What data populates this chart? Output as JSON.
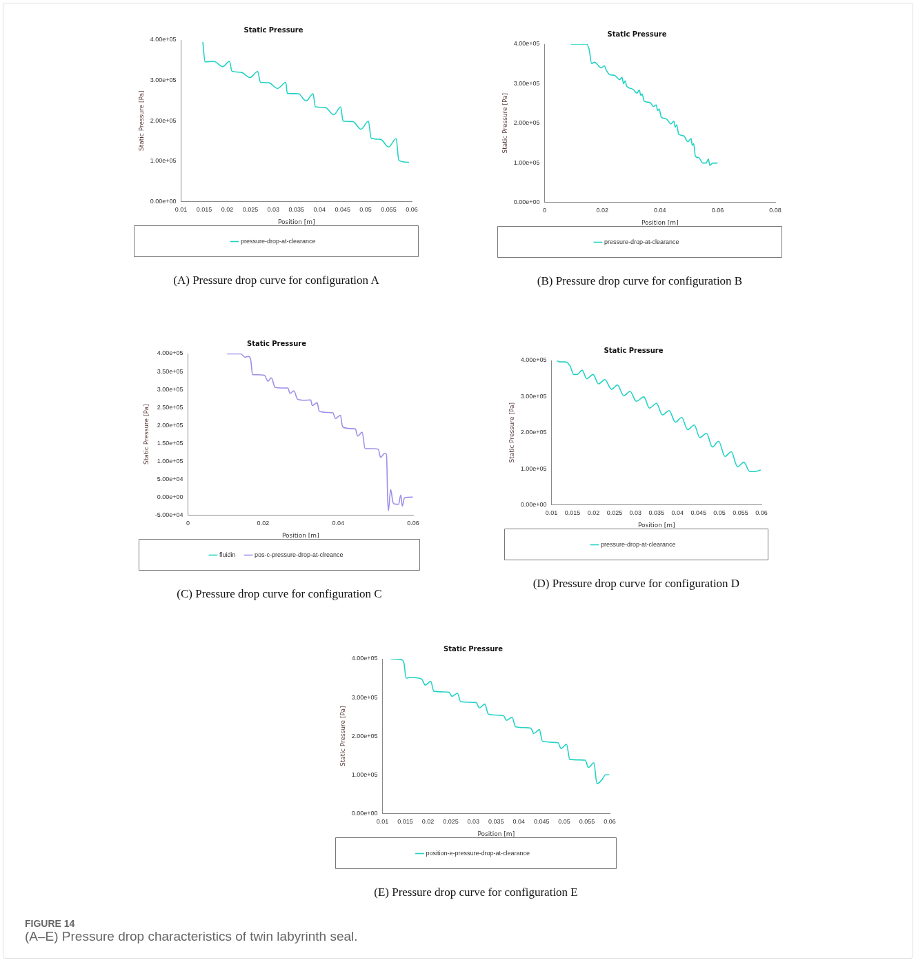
{
  "chart_data": [
    {
      "type": "line",
      "title": "Static Pressure",
      "xlabel": "Position [m]",
      "ylabel": "Static Pressure [Pa]",
      "legend": "bottom",
      "marker": "none",
      "line_style": "solid",
      "grid": false,
      "xlim": [
        0.01,
        0.06
      ],
      "xticks": [
        0.01,
        0.015,
        0.02,
        0.025,
        0.03,
        0.035,
        0.04,
        0.045,
        0.05,
        0.055,
        0.06
      ],
      "ylim": [
        0,
        400000
      ],
      "yticks": [
        {
          "value": 0,
          "label": "0.00e+00"
        },
        {
          "value": 100000,
          "label": "1.00e+05"
        },
        {
          "value": 200000,
          "label": "2.00e+05"
        },
        {
          "value": 300000,
          "label": "3.00e+05"
        },
        {
          "value": 400000,
          "label": "4.00e+05"
        }
      ],
      "series": [
        {
          "name": "pressure-drop-at-clearance",
          "color": "#22d3c5",
          "x": [
            0.0147,
            0.0152,
            0.0171,
            0.019,
            0.0205,
            0.021,
            0.023,
            0.0249,
            0.0266,
            0.0272,
            0.029,
            0.0309,
            0.0327,
            0.033,
            0.0354,
            0.0371,
            0.0386,
            0.0391,
            0.0412,
            0.0431,
            0.0446,
            0.0451,
            0.0472,
            0.049,
            0.0506,
            0.0512,
            0.0532,
            0.055,
            0.0566,
            0.0572,
            0.0594
          ],
          "values": [
            395000,
            346000,
            347000,
            334000,
            347000,
            323000,
            320000,
            307000,
            322000,
            295000,
            294000,
            280000,
            295000,
            268000,
            267000,
            249000,
            267000,
            235000,
            233000,
            215000,
            234000,
            199000,
            198000,
            179000,
            199000,
            157000,
            154000,
            135000,
            156000,
            102000,
            97000
          ]
        }
      ],
      "annotations": [
        "(A) Pressure drop curve for configuration A"
      ]
    },
    {
      "type": "line",
      "title": "Static Pressure",
      "xlabel": "Position [m]",
      "ylabel": "Static Pressure [Pa]",
      "legend": "bottom",
      "marker": "none",
      "line_style": "solid",
      "grid": false,
      "xlim": [
        0,
        0.08
      ],
      "xticks": [
        0,
        0.02,
        0.04,
        0.06,
        0.08
      ],
      "ylim": [
        0,
        400000
      ],
      "yticks": [
        {
          "value": 0,
          "label": "0.00e+00"
        },
        {
          "value": 100000,
          "label": "1.00e+05"
        },
        {
          "value": 200000,
          "label": "2.00e+05"
        },
        {
          "value": 300000,
          "label": "3.00e+05"
        },
        {
          "value": 400000,
          "label": "4.00e+05"
        }
      ],
      "series": [
        {
          "name": "pressure-drop-at-clearance",
          "color": "#22d3c5",
          "x": [
            0.0091,
            0.0145,
            0.0154,
            0.0163,
            0.0173,
            0.0197,
            0.0207,
            0.0214,
            0.0225,
            0.0242,
            0.0261,
            0.0268,
            0.0274,
            0.0279,
            0.0285,
            0.0306,
            0.0321,
            0.0328,
            0.0334,
            0.0338,
            0.0345,
            0.0366,
            0.0377,
            0.0387,
            0.0392,
            0.0397,
            0.0405,
            0.0422,
            0.0438,
            0.0448,
            0.0453,
            0.0458,
            0.0465,
            0.0482,
            0.0497,
            0.0508,
            0.0512,
            0.0517,
            0.0523,
            0.0534,
            0.0549,
            0.056,
            0.0568,
            0.0573,
            0.0583,
            0.06
          ],
          "values": [
            400000,
            400000,
            388000,
            351000,
            354000,
            340000,
            345000,
            334000,
            323000,
            321000,
            310000,
            316000,
            300000,
            307000,
            293000,
            286000,
            276000,
            284000,
            270000,
            274000,
            256000,
            252000,
            242000,
            246000,
            232000,
            236000,
            215000,
            211000,
            198000,
            205000,
            190000,
            196000,
            172000,
            168000,
            153000,
            161000,
            144000,
            148000,
            116000,
            113000,
            99000,
            99000,
            109000,
            93000,
            99000,
            99000
          ]
        }
      ],
      "annotations": [
        "(B) Pressure drop curve for configuration B"
      ]
    },
    {
      "type": "line",
      "title": "Static Pressure",
      "xlabel": "Position [m]",
      "ylabel": "Static Pressure [Pa]",
      "legend": "bottom",
      "marker": "none",
      "line_style": "solid",
      "grid": false,
      "xlim": [
        0,
        0.06
      ],
      "xticks": [
        0,
        0.02,
        0.04,
        0.06
      ],
      "ylim": [
        -50000,
        400000
      ],
      "yticks": [
        {
          "value": -50000,
          "label": "-5.00e+04"
        },
        {
          "value": 0,
          "label": "0.00e+00"
        },
        {
          "value": 50000,
          "label": "5.00e+04"
        },
        {
          "value": 100000,
          "label": "1.00e+05"
        },
        {
          "value": 150000,
          "label": "1.50e+05"
        },
        {
          "value": 200000,
          "label": "2.00e+05"
        },
        {
          "value": 250000,
          "label": "2.50e+05"
        },
        {
          "value": 300000,
          "label": "3.00e+05"
        },
        {
          "value": 350000,
          "label": "3.50e+05"
        },
        {
          "value": 400000,
          "label": "4.00e+05"
        }
      ],
      "series": [
        {
          "name": "fluidin",
          "color": "#22d3c5"
        },
        {
          "name": "pos-c-pressure-drop-at-clreance",
          "color": "#9f8fe8",
          "x": [
            0.0104,
            0.0141,
            0.0151,
            0.0161,
            0.0167,
            0.0172,
            0.0184,
            0.0204,
            0.0213,
            0.0222,
            0.0232,
            0.0248,
            0.0266,
            0.0272,
            0.0282,
            0.0292,
            0.0311,
            0.0327,
            0.0331,
            0.0344,
            0.035,
            0.0371,
            0.0386,
            0.0393,
            0.0406,
            0.0412,
            0.0432,
            0.0446,
            0.0452,
            0.0464,
            0.0472,
            0.0489,
            0.0507,
            0.0513,
            0.0524,
            0.0529,
            0.0532,
            0.0534,
            0.054,
            0.0546,
            0.055,
            0.0561,
            0.0567,
            0.0571,
            0.0577,
            0.0599
          ],
          "values": [
            399000,
            399000,
            390000,
            392000,
            383000,
            341000,
            341000,
            339000,
            323000,
            332000,
            306000,
            304000,
            304000,
            289000,
            296000,
            273000,
            270000,
            271000,
            255000,
            263000,
            239000,
            236000,
            235000,
            219000,
            228000,
            196000,
            191000,
            190000,
            170000,
            181000,
            135000,
            135000,
            133000,
            111000,
            122000,
            119000,
            -2000,
            -38000,
            21000,
            -14000,
            -19000,
            -20000,
            6000,
            -25000,
            -2000,
            0
          ]
        }
      ],
      "annotations": [
        "(C) Pressure drop curve for configuration C"
      ]
    },
    {
      "type": "line",
      "title": "Static Pressure",
      "xlabel": "Position [m]",
      "ylabel": "Static Pressure [Pa]",
      "legend": "bottom",
      "marker": "none",
      "line_style": "solid",
      "grid": false,
      "xlim": [
        0.01,
        0.06
      ],
      "xticks": [
        0.01,
        0.015,
        0.02,
        0.025,
        0.03,
        0.035,
        0.04,
        0.045,
        0.05,
        0.055,
        0.06
      ],
      "ylim": [
        0,
        400000
      ],
      "yticks": [
        {
          "value": 0,
          "label": "0.00e+00"
        },
        {
          "value": 100000,
          "label": "1.00e+05"
        },
        {
          "value": 200000,
          "label": "2.00e+05"
        },
        {
          "value": 300000,
          "label": "3.00e+05"
        },
        {
          "value": 400000,
          "label": "4.00e+05"
        }
      ],
      "series": [
        {
          "name": "pressure-drop-at-clearance",
          "color": "#22d3c5",
          "x": [
            0.0113,
            0.0119,
            0.0133,
            0.0144,
            0.0153,
            0.0161,
            0.0173,
            0.0184,
            0.0199,
            0.0212,
            0.0227,
            0.0243,
            0.0257,
            0.0272,
            0.0287,
            0.0302,
            0.032,
            0.0333,
            0.035,
            0.0364,
            0.038,
            0.0395,
            0.041,
            0.0424,
            0.044,
            0.0453,
            0.0469,
            0.0483,
            0.0498,
            0.0513,
            0.0528,
            0.0543,
            0.0558,
            0.0572,
            0.0583,
            0.0598
          ],
          "values": [
            399000,
            396000,
            396000,
            385000,
            361000,
            361000,
            373000,
            349000,
            361000,
            335000,
            347000,
            320000,
            332000,
            302000,
            314000,
            287000,
            299000,
            268000,
            281000,
            249000,
            261000,
            229000,
            242000,
            208000,
            221000,
            186000,
            198000,
            160000,
            176000,
            134000,
            147000,
            105000,
            118000,
            92000,
            92000,
            96000
          ]
        }
      ],
      "annotations": [
        "(D) Pressure drop curve for configuration D"
      ]
    },
    {
      "type": "line",
      "title": "Static Pressure",
      "xlabel": "Position [m]",
      "ylabel": "Static Pressure [Pa]",
      "legend": "bottom",
      "marker": "none",
      "line_style": "solid",
      "grid": false,
      "xlim": [
        0.01,
        0.06
      ],
      "xticks": [
        0.01,
        0.015,
        0.02,
        0.025,
        0.03,
        0.035,
        0.04,
        0.045,
        0.05,
        0.055,
        0.06
      ],
      "ylim": [
        0,
        400000
      ],
      "yticks": [
        {
          "value": 0,
          "label": "0.00e+00"
        },
        {
          "value": 100000,
          "label": "1.00e+05"
        },
        {
          "value": 200000,
          "label": "2.00e+05"
        },
        {
          "value": 300000,
          "label": "3.00e+05"
        },
        {
          "value": 400000,
          "label": "4.00e+05"
        }
      ],
      "series": [
        {
          "name": "position-e-pressure-drop-at-clearance",
          "color": "#22d3c5",
          "x": [
            0.0118,
            0.0141,
            0.0147,
            0.0152,
            0.016,
            0.0186,
            0.0194,
            0.0206,
            0.0213,
            0.0246,
            0.0253,
            0.0265,
            0.0272,
            0.0306,
            0.0313,
            0.0325,
            0.0333,
            0.0366,
            0.0373,
            0.0385,
            0.0393,
            0.0426,
            0.0433,
            0.0445,
            0.0452,
            0.0486,
            0.0493,
            0.0505,
            0.0512,
            0.0546,
            0.0553,
            0.0565,
            0.0572,
            0.0582,
            0.0591,
            0.0599
          ],
          "values": [
            400000,
            398000,
            390000,
            350000,
            352000,
            348000,
            332000,
            342000,
            316000,
            314000,
            303000,
            311000,
            289000,
            287000,
            273000,
            283000,
            257000,
            253000,
            241000,
            249000,
            224000,
            221000,
            207000,
            217000,
            187000,
            183000,
            168000,
            179000,
            140000,
            138000,
            119000,
            131000,
            77000,
            86000,
            100000,
            100000
          ]
        }
      ],
      "annotations": [
        "(E) Pressure drop curve for configuration E",
        "FIGURE 14",
        "(A–E) Pressure drop characteristics of twin labyrinth seal."
      ]
    }
  ]
}
